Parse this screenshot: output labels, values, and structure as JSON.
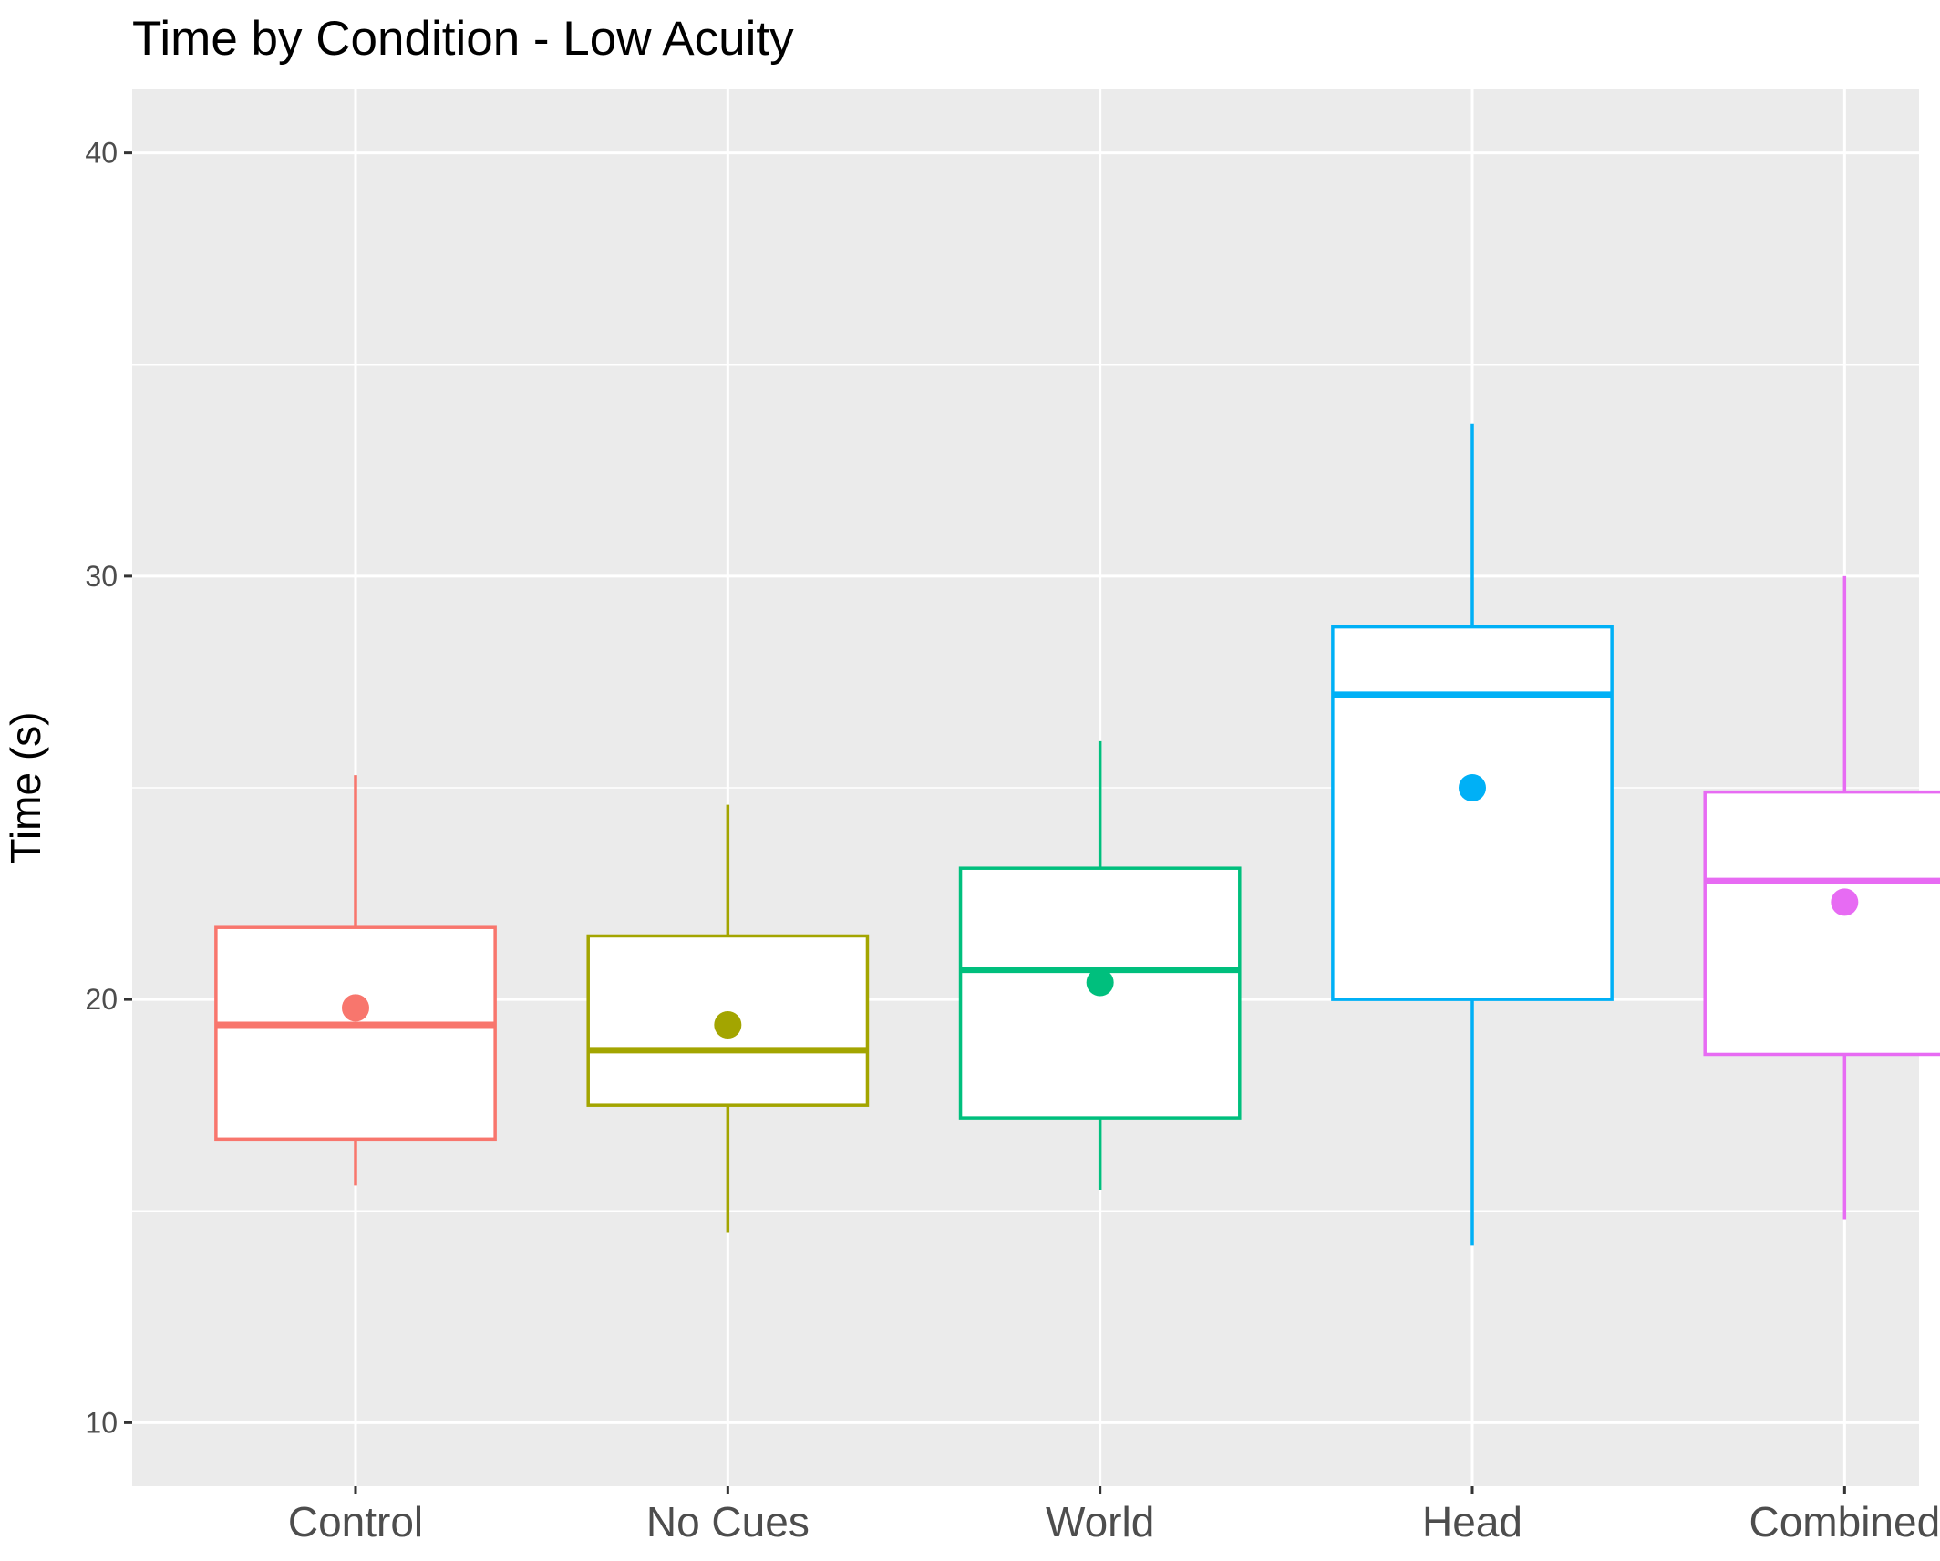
{
  "chart_data": {
    "type": "boxplot",
    "title": "Time by Condition - Low Acuity",
    "xlabel": "",
    "ylabel": "Time (s)",
    "ylim": [
      8.5,
      41.5
    ],
    "y_ticks": [
      10,
      20,
      30,
      40
    ],
    "y_minor_ticks": [
      15,
      25,
      35
    ],
    "categories": [
      "Control",
      "No Cues",
      "World",
      "Head",
      "Combined"
    ],
    "colors": [
      "#F8766D",
      "#A3A500",
      "#00BF7D",
      "#00B0F6",
      "#E76BF3"
    ],
    "panel_background": "#EBEBEB",
    "grid": true,
    "legend": "none",
    "boxes": [
      {
        "category": "Control",
        "whisker_low": 15.6,
        "q1": 16.7,
        "median": 19.4,
        "q3": 21.7,
        "whisker_high": 25.3,
        "mean": 19.8
      },
      {
        "category": "No Cues",
        "whisker_low": 14.5,
        "q1": 17.5,
        "median": 18.8,
        "q3": 21.5,
        "whisker_high": 24.6,
        "mean": 19.4
      },
      {
        "category": "World",
        "whisker_low": 15.5,
        "q1": 17.2,
        "median": 20.7,
        "q3": 23.1,
        "whisker_high": 26.1,
        "mean": 20.4
      },
      {
        "category": "Head",
        "whisker_low": 14.2,
        "q1": 20.0,
        "median": 27.2,
        "q3": 28.8,
        "whisker_high": 33.6,
        "mean": 25.0
      },
      {
        "category": "Combined",
        "whisker_low": 14.8,
        "q1": 18.7,
        "median": 22.8,
        "q3": 24.9,
        "whisker_high": 30.0,
        "mean": 22.3
      }
    ]
  }
}
